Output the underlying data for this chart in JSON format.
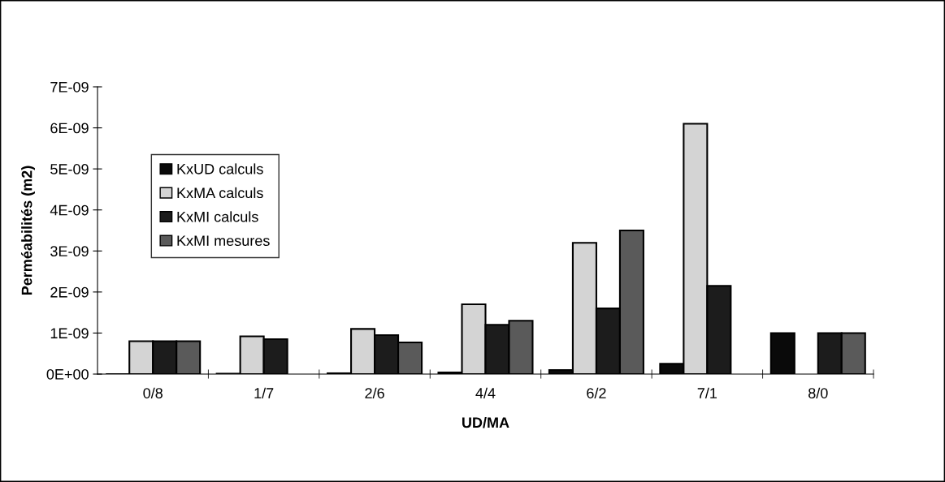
{
  "chart_data": {
    "type": "bar",
    "xlabel": "UD/MA",
    "ylabel": "Perméabilités (m2)",
    "categories": [
      "0/8",
      "1/7",
      "2/6",
      "4/4",
      "6/2",
      "7/1",
      "8/0"
    ],
    "series": [
      {
        "name": "KxUD calculs",
        "color": "#0a0a0a",
        "values": [
          0,
          1e-11,
          2e-11,
          4e-11,
          1e-10,
          2.5e-10,
          1e-09
        ]
      },
      {
        "name": "KxMA calculs",
        "color": "#d4d4d4",
        "values": [
          8e-10,
          9.2e-10,
          1.1e-09,
          1.7e-09,
          3.2e-09,
          6.1e-09,
          null
        ]
      },
      {
        "name": "KxMI calculs",
        "color": "#1c1c1c",
        "values": [
          8e-10,
          8.5e-10,
          9.5e-10,
          1.2e-09,
          1.6e-09,
          2.15e-09,
          1e-09
        ]
      },
      {
        "name": "KxMI mesures",
        "color": "#5a5a5a",
        "values": [
          8e-10,
          null,
          7.7e-10,
          1.3e-09,
          3.5e-09,
          null,
          1e-09
        ]
      }
    ],
    "ylim": [
      0,
      7e-09
    ],
    "yticks": [
      {
        "value": 0,
        "label": "0E+00"
      },
      {
        "value": 1e-09,
        "label": "1E-09"
      },
      {
        "value": 2e-09,
        "label": "2E-09"
      },
      {
        "value": 3e-09,
        "label": "3E-09"
      },
      {
        "value": 4e-09,
        "label": "4E-09"
      },
      {
        "value": 5e-09,
        "label": "5E-09"
      },
      {
        "value": 6e-09,
        "label": "6E-09"
      },
      {
        "value": 7e-09,
        "label": "7E-09"
      }
    ],
    "grid": false,
    "legend": "left"
  }
}
